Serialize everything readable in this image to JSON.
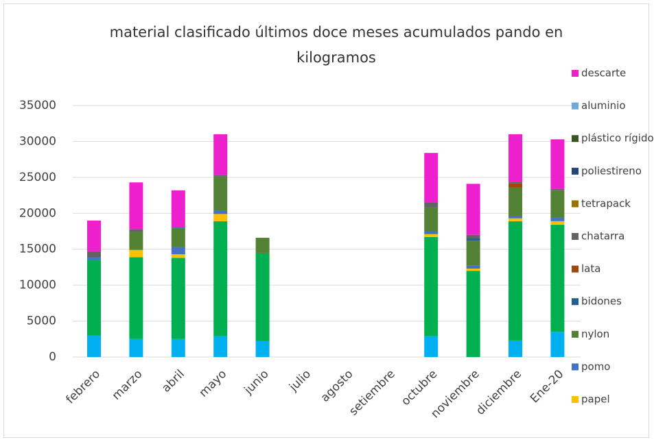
{
  "chart_data": {
    "type": "bar",
    "stacked": true,
    "title": "material clasificado últimos doce meses acumulados pando en kilogramos",
    "categories": [
      "febrero",
      "marzo",
      "abril",
      "mayo",
      "junio",
      "julio",
      "agosto",
      "setiembre",
      "octubre",
      "noviembre",
      "diciembre",
      "Ene-20"
    ],
    "ylim": [
      0,
      35000
    ],
    "yticks": [
      0,
      5000,
      10000,
      15000,
      20000,
      25000,
      30000,
      35000
    ],
    "grid": true,
    "legend": "right",
    "series": [
      {
        "color": "#00b0f0",
        "values": [
          3000,
          2500,
          2500,
          2900,
          2200,
          0,
          0,
          0,
          2900,
          0,
          2300,
          3500
        ]
      },
      {
        "color": "#00b050",
        "values": [
          10500,
          11400,
          11300,
          16000,
          12200,
          0,
          0,
          0,
          13800,
          12000,
          16600,
          14900
        ]
      },
      {
        "name": "papel",
        "color": "#ffc000",
        "values": [
          0,
          1000,
          500,
          1000,
          0,
          0,
          0,
          0,
          400,
          300,
          400,
          500
        ]
      },
      {
        "name": "pomo",
        "color": "#4472c4",
        "values": [
          300,
          0,
          1000,
          500,
          100,
          0,
          0,
          0,
          400,
          400,
          300,
          500
        ]
      },
      {
        "name": "nylon",
        "color": "#548235",
        "values": [
          0,
          2500,
          2600,
          4700,
          2100,
          0,
          0,
          0,
          3300,
          3500,
          4000,
          3800
        ]
      },
      {
        "name": "bidones",
        "color": "#255e91",
        "values": [
          100,
          0,
          100,
          0,
          0,
          0,
          0,
          0,
          0,
          300,
          0,
          0
        ]
      },
      {
        "name": "lata",
        "color": "#9e480e",
        "values": [
          0,
          0,
          0,
          0,
          0,
          0,
          0,
          0,
          0,
          0,
          600,
          0
        ]
      },
      {
        "name": "chatarra",
        "color": "#636363",
        "values": [
          800,
          400,
          100,
          200,
          0,
          0,
          0,
          0,
          700,
          500,
          200,
          200
        ]
      },
      {
        "name": "tetrapack",
        "color": "#997300",
        "values": [
          0,
          0,
          0,
          0,
          0,
          0,
          0,
          0,
          0,
          0,
          0,
          0
        ]
      },
      {
        "name": "poliestireno",
        "color": "#264478",
        "values": [
          0,
          0,
          0,
          0,
          0,
          0,
          0,
          0,
          0,
          0,
          0,
          0
        ]
      },
      {
        "name": "plástico rígido",
        "color": "#375623",
        "values": [
          0,
          0,
          0,
          0,
          0,
          0,
          0,
          0,
          0,
          0,
          0,
          0
        ]
      },
      {
        "name": "aluminio",
        "color": "#6fa8dc",
        "values": [
          0,
          0,
          0,
          0,
          0,
          0,
          0,
          0,
          0,
          0,
          0,
          0
        ]
      },
      {
        "name": "descarte",
        "color": "#ee1fcc",
        "values": [
          4300,
          6500,
          5100,
          5700,
          0,
          0,
          0,
          0,
          6900,
          7100,
          6600,
          6900
        ]
      }
    ]
  }
}
